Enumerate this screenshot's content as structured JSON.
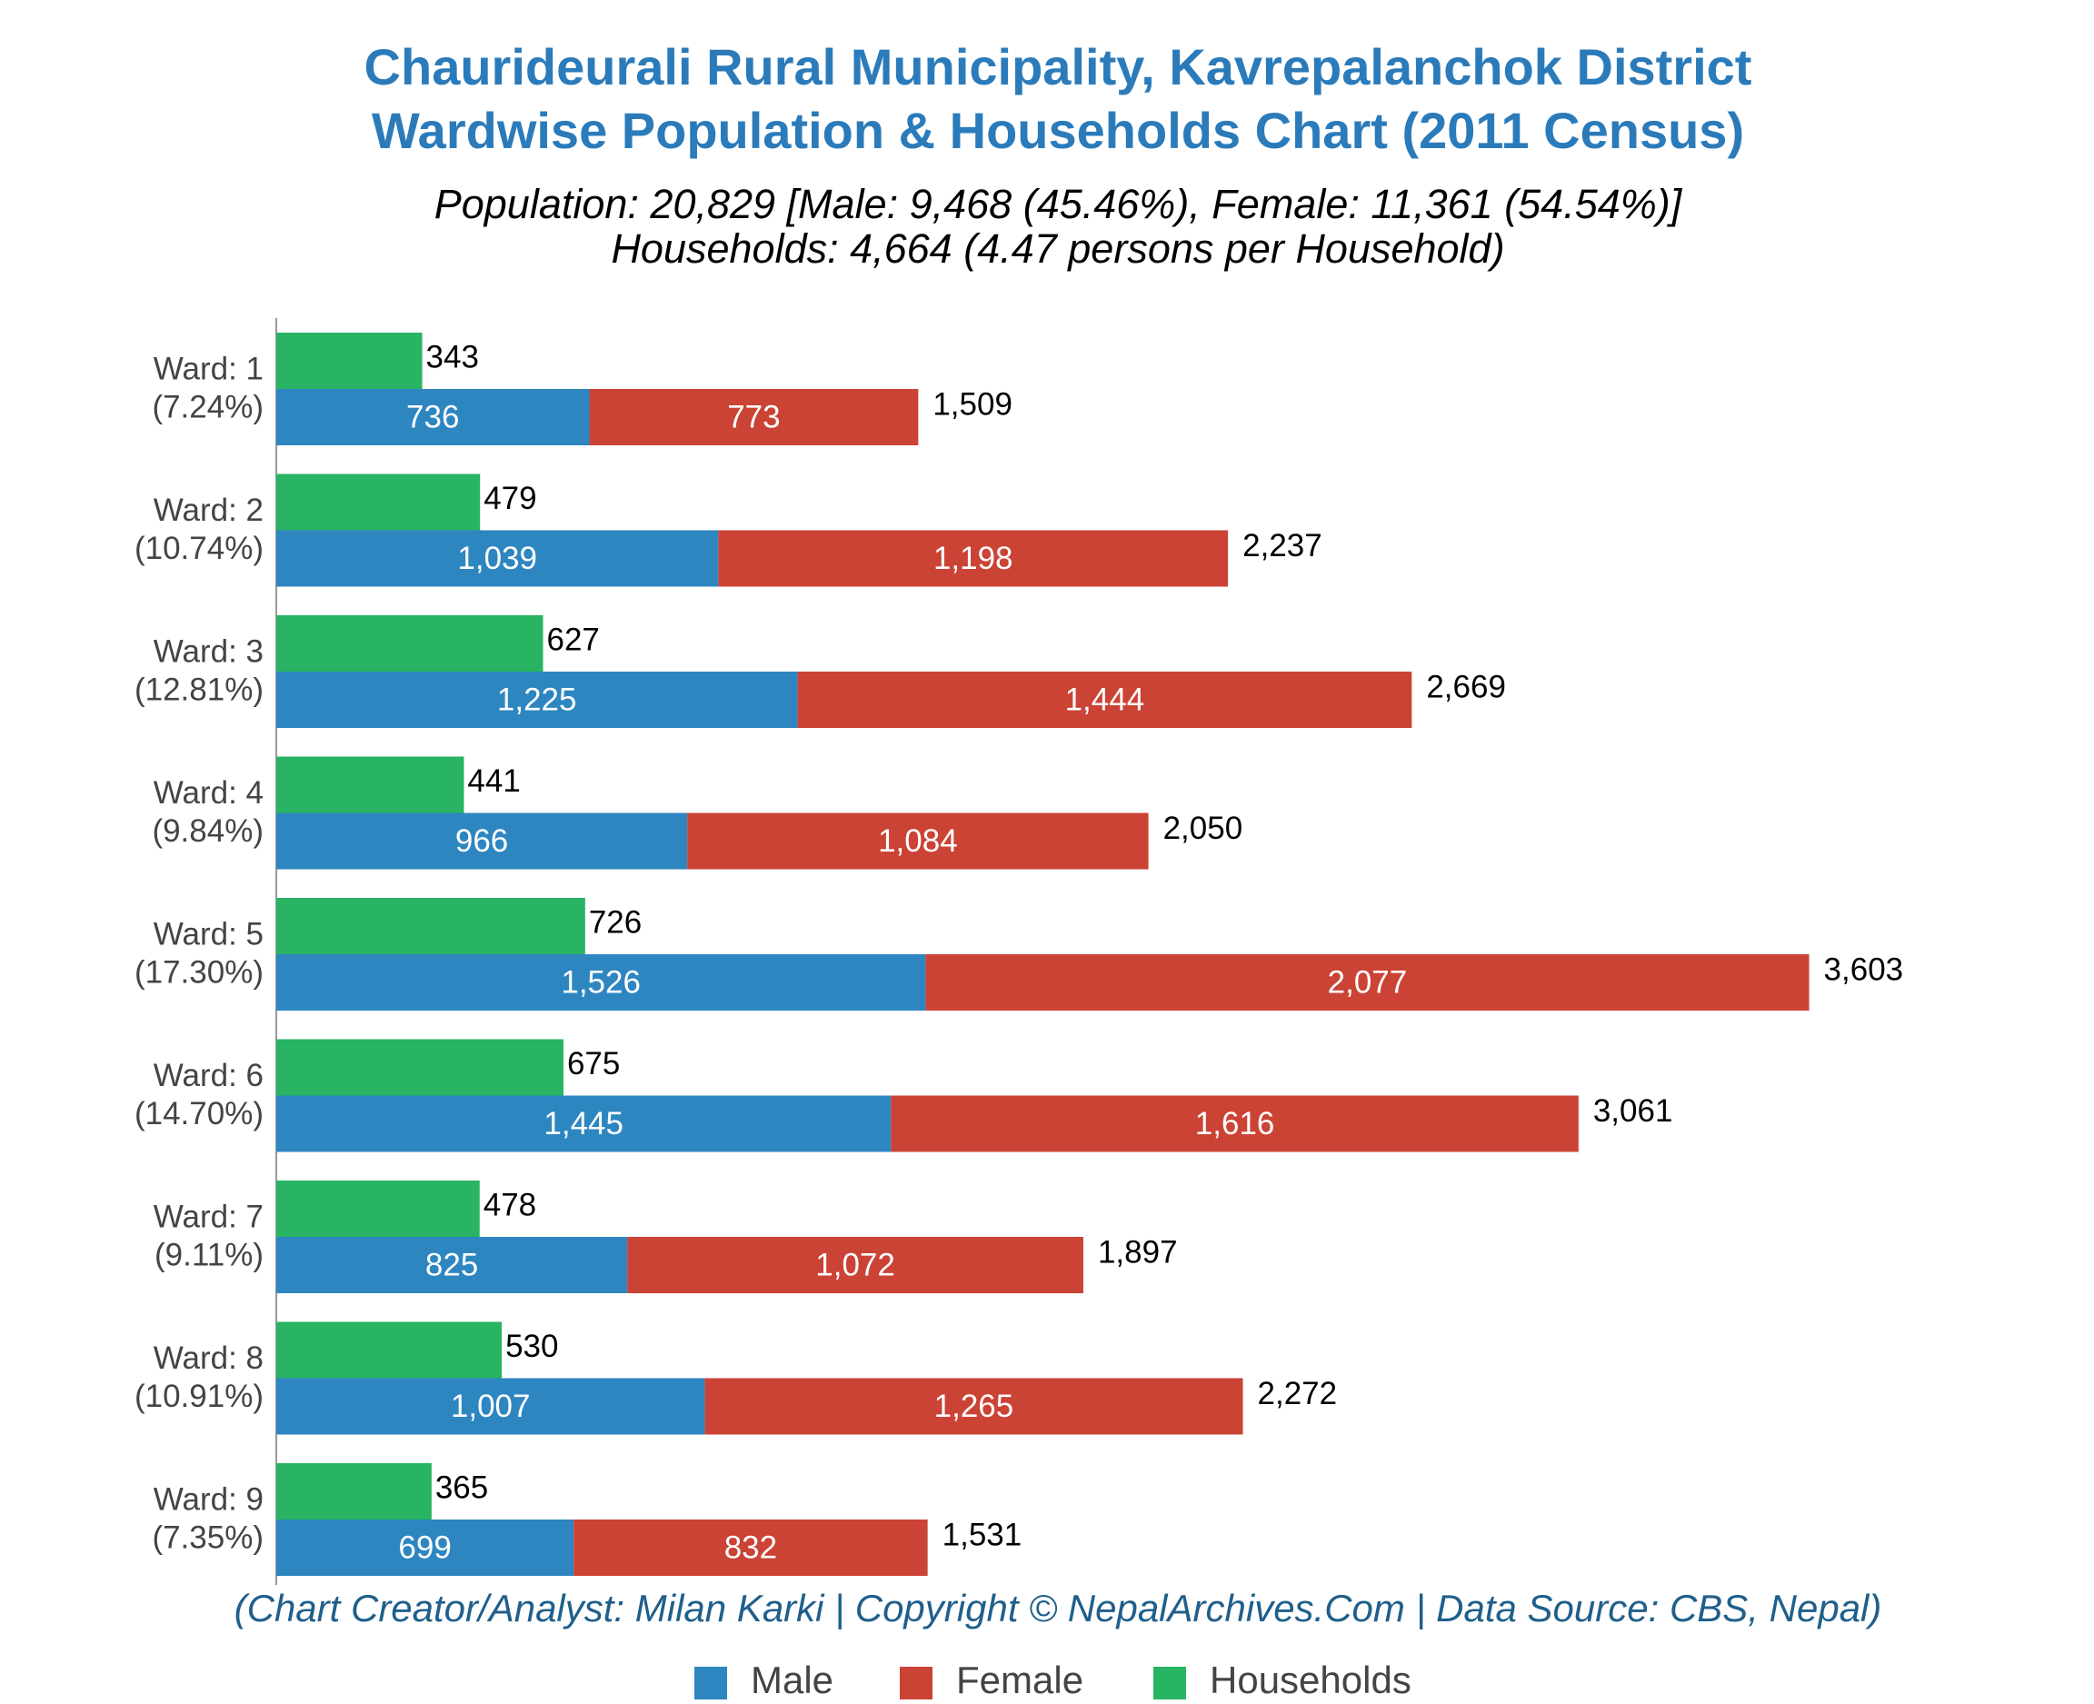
{
  "chart_data": {
    "type": "bar",
    "orientation": "horizontal",
    "title": [
      "Chaurideurali Rural Municipality, Kavrepalanchok District",
      "Wardwise Population & Households Chart (2011 Census)"
    ],
    "subtitle": [
      "Population: 20,829 [Male: 9,468 (45.46%), Female: 11,361 (54.54%)]",
      "Households: 4,664 (4.47 persons per Household)"
    ],
    "source": "(Chart Creator/Analyst: Milan Karki | Copyright © NepalArchives.Com | Data Source: CBS, Nepal)",
    "categories": [
      "Ward: 1",
      "Ward: 2",
      "Ward: 3",
      "Ward: 4",
      "Ward: 5",
      "Ward: 6",
      "Ward: 7",
      "Ward: 8",
      "Ward: 9"
    ],
    "category_sublabels": [
      "(7.24%)",
      "(10.74%)",
      "(12.81%)",
      "(9.84%)",
      "(17.30%)",
      "(14.70%)",
      "(9.11%)",
      "(10.91%)",
      "(7.35%)"
    ],
    "series": [
      {
        "name": "Male",
        "color": "#2e86c1",
        "values": [
          736,
          1039,
          1225,
          966,
          1526,
          1445,
          825,
          1007,
          699
        ],
        "value_labels": [
          "736",
          "1,039",
          "1,225",
          "966",
          "1,526",
          "1,445",
          "825",
          "1,007",
          "699"
        ]
      },
      {
        "name": "Female",
        "color": "#cb4335",
        "values": [
          773,
          1198,
          1444,
          1084,
          2077,
          1616,
          1072,
          1265,
          832
        ],
        "value_labels": [
          "773",
          "1,198",
          "1,444",
          "1,084",
          "2,077",
          "1,616",
          "1,072",
          "1,265",
          "832"
        ]
      },
      {
        "name": "Households",
        "color": "#28b463",
        "values": [
          343,
          479,
          627,
          441,
          726,
          675,
          478,
          530,
          365
        ],
        "value_labels": [
          "343",
          "479",
          "627",
          "441",
          "726",
          "675",
          "478",
          "530",
          "365"
        ]
      }
    ],
    "totals": {
      "values": [
        1509,
        2237,
        2669,
        2050,
        3603,
        3061,
        1897,
        2272,
        1531
      ],
      "value_labels": [
        "1,509",
        "2,237",
        "2,669",
        "2,050",
        "3,603",
        "3,061",
        "1,897",
        "2,272",
        "1,531"
      ]
    },
    "xlim": [
      0,
      4200
    ],
    "legend": "bottom"
  }
}
